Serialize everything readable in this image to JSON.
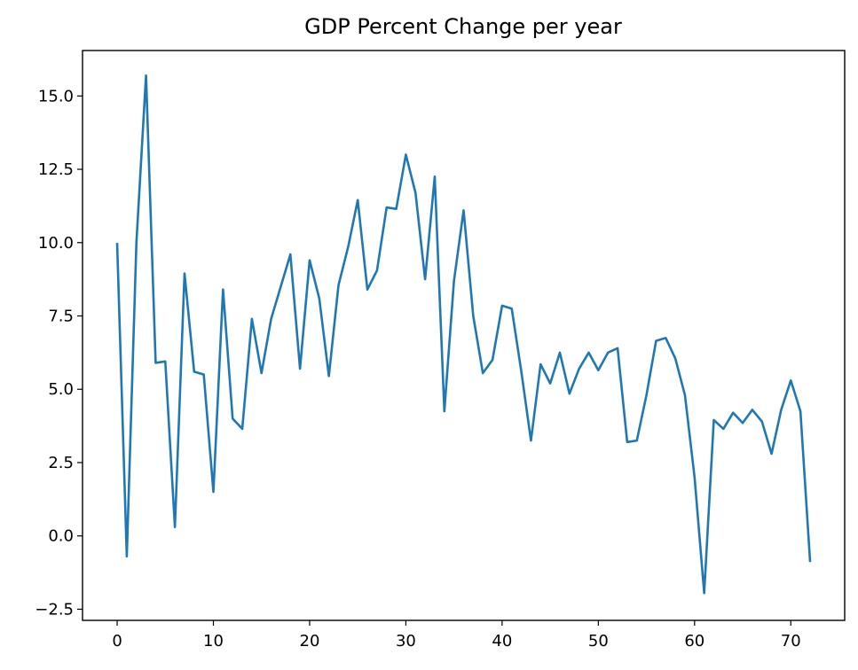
{
  "chart_data": {
    "type": "line",
    "title": "GDP Percent Change per year",
    "xlabel": "",
    "ylabel": "",
    "xlim": [
      -3.6,
      75.6
    ],
    "ylim": [
      -2.88,
      16.55
    ],
    "grid": false,
    "xticks": [
      0,
      10,
      20,
      30,
      40,
      50,
      60,
      70
    ],
    "xtick_labels": [
      "0",
      "10",
      "20",
      "30",
      "40",
      "50",
      "60",
      "70"
    ],
    "yticks": [
      -2.5,
      0.0,
      2.5,
      5.0,
      7.5,
      10.0,
      12.5,
      15.0
    ],
    "ytick_labels": [
      "−2.5",
      "0.0",
      "2.5",
      "5.0",
      "7.5",
      "10.0",
      "12.5",
      "15.0"
    ],
    "series": [
      {
        "name": "",
        "color": "#1f77b4",
        "x": [
          0,
          1,
          2,
          3,
          4,
          5,
          6,
          7,
          8,
          9,
          10,
          11,
          12,
          13,
          14,
          15,
          16,
          17,
          18,
          19,
          20,
          21,
          22,
          23,
          24,
          25,
          26,
          27,
          28,
          29,
          30,
          31,
          32,
          33,
          34,
          35,
          36,
          37,
          38,
          39,
          40,
          41,
          42,
          43,
          44,
          45,
          46,
          47,
          48,
          49,
          50,
          51,
          52,
          53,
          54,
          55,
          56,
          57,
          58,
          59,
          60,
          61,
          62,
          63,
          64,
          65,
          66,
          67,
          68,
          69,
          70,
          71,
          72
        ],
        "y": [
          9.95,
          -0.7,
          10.0,
          15.7,
          5.9,
          5.95,
          0.3,
          8.95,
          5.6,
          5.5,
          1.5,
          8.4,
          4.0,
          3.65,
          7.4,
          5.55,
          7.4,
          8.5,
          9.6,
          5.7,
          9.4,
          8.1,
          5.45,
          8.55,
          9.85,
          11.45,
          8.4,
          9.05,
          11.2,
          11.15,
          13.0,
          11.7,
          8.75,
          12.25,
          4.25,
          8.7,
          11.1,
          7.5,
          5.55,
          6.0,
          7.85,
          7.75,
          5.6,
          3.25,
          5.85,
          5.2,
          6.25,
          4.85,
          5.7,
          6.25,
          5.65,
          6.25,
          6.4,
          3.2,
          3.25,
          4.8,
          6.65,
          6.75,
          6.05,
          4.8,
          2.0,
          -1.95,
          3.95,
          3.65,
          4.2,
          3.85,
          4.3,
          3.9,
          2.8,
          4.3,
          5.3,
          4.25,
          -0.85
        ]
      }
    ]
  }
}
